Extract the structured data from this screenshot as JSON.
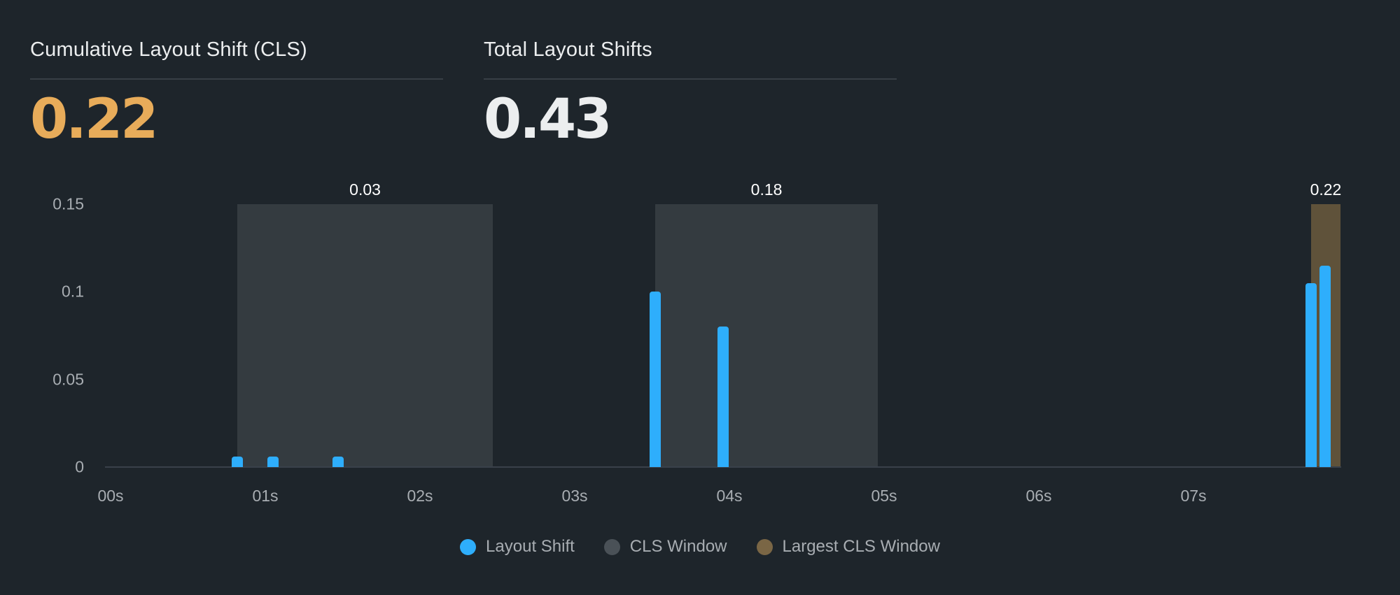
{
  "metrics": [
    {
      "label": "Cumulative Layout Shift (CLS)",
      "value": "0.22",
      "color": "#e8ac5a"
    },
    {
      "label": "Total Layout Shifts",
      "value": "0.43",
      "color": "#eceeef"
    }
  ],
  "colors": {
    "background": "#1e252b",
    "layout_shift": "#2eaefc",
    "cls_window": "#4a5157",
    "cls_window_fill": "#343b40",
    "largest_cls_window": "#7a6645",
    "largest_cls_window_fill": "#5f523a",
    "cls_value": "#e8ac5a"
  },
  "chart_data": {
    "type": "bar",
    "title": "",
    "xlabel": "",
    "ylabel": "",
    "xlim": [
      0,
      7.95
    ],
    "ylim": [
      0,
      0.15
    ],
    "y_ticks": [
      "0",
      "0.05",
      "0.1",
      "0.15"
    ],
    "x_ticks": [
      "00s",
      "01s",
      "02s",
      "03s",
      "04s",
      "05s",
      "06s",
      "07s"
    ],
    "grid": false,
    "legend_position": "bottom",
    "legend": [
      "Layout Shift",
      "CLS Window",
      "Largest CLS Window"
    ],
    "series": [
      {
        "name": "Layout Shift",
        "x": [
          0.82,
          1.05,
          1.47,
          3.52,
          3.96,
          7.76,
          7.85
        ],
        "values": [
          0.006,
          0.006,
          0.006,
          0.1,
          0.08,
          0.105,
          0.115
        ]
      }
    ],
    "windows": [
      {
        "type": "CLS Window",
        "start": 0.82,
        "end": 2.47,
        "label": "0.03"
      },
      {
        "type": "CLS Window",
        "start": 3.52,
        "end": 4.96,
        "label": "0.18"
      },
      {
        "type": "Largest CLS Window",
        "start": 7.76,
        "end": 7.95,
        "label": "0.22"
      }
    ]
  },
  "legend": {
    "items": [
      {
        "label": "Layout Shift",
        "color": "#2eaefc"
      },
      {
        "label": "CLS Window",
        "color": "#4a5157"
      },
      {
        "label": "Largest CLS Window",
        "color": "#7a6645"
      }
    ]
  }
}
